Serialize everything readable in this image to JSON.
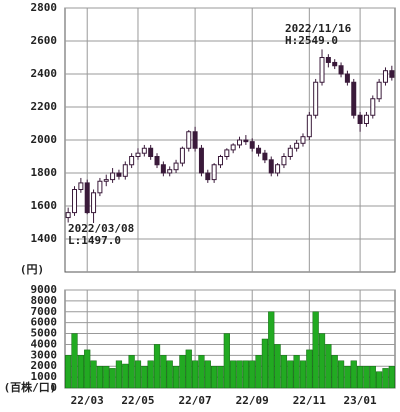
{
  "chart_data": [
    {
      "type": "candlestick",
      "y_label": "(円)",
      "color": "#3a1a3a",
      "ylim": [
        1200,
        2800
      ],
      "yticks": [
        1400,
        1600,
        1800,
        2000,
        2200,
        2400,
        2600,
        2800
      ],
      "annotations": [
        "2022/11/16",
        "H:2549.0",
        "2022/03/08",
        "L:1497.0"
      ],
      "open": [
        1530,
        1560,
        1700,
        1740,
        1560,
        1680,
        1750,
        1760,
        1800,
        1780,
        1850,
        1900,
        1920,
        1950,
        1900,
        1850,
        1800,
        1820,
        1860,
        1950,
        2050,
        1950,
        1800,
        1760,
        1850,
        1900,
        1940,
        1970,
        2000,
        1990,
        1950,
        1920,
        1880,
        1800,
        1850,
        1900,
        1950,
        1980,
        2020,
        2150,
        2350,
        2500,
        2470,
        2450,
        2400,
        2350,
        2150,
        2100,
        2150,
        2250,
        2350,
        2420
      ],
      "high": [
        1590,
        1720,
        1770,
        1760,
        1700,
        1770,
        1790,
        1830,
        1820,
        1870,
        1920,
        1950,
        1970,
        1970,
        1920,
        1870,
        1840,
        1880,
        1960,
        2060,
        2080,
        1970,
        1820,
        1860,
        1910,
        1950,
        1980,
        2020,
        2030,
        2010,
        1970,
        1940,
        1900,
        1860,
        1920,
        1970,
        2000,
        2040,
        2170,
        2370,
        2549,
        2520,
        2490,
        2470,
        2420,
        2370,
        2170,
        2170,
        2270,
        2370,
        2440,
        2450
      ],
      "low": [
        1500,
        1540,
        1680,
        1550,
        1497,
        1660,
        1720,
        1740,
        1760,
        1760,
        1830,
        1880,
        1900,
        1880,
        1830,
        1780,
        1780,
        1800,
        1840,
        1930,
        1930,
        1780,
        1740,
        1740,
        1830,
        1880,
        1920,
        1950,
        1970,
        1930,
        1900,
        1860,
        1780,
        1780,
        1830,
        1880,
        1930,
        1960,
        2000,
        2130,
        2330,
        2440,
        2430,
        2380,
        2330,
        2130,
        2050,
        2080,
        2130,
        2230,
        2330,
        2360
      ],
      "close": [
        1560,
        1700,
        1740,
        1560,
        1680,
        1750,
        1760,
        1800,
        1780,
        1850,
        1900,
        1920,
        1950,
        1900,
        1850,
        1800,
        1820,
        1860,
        1950,
        2050,
        1950,
        1800,
        1760,
        1850,
        1900,
        1940,
        1970,
        2000,
        1990,
        1950,
        1920,
        1880,
        1800,
        1850,
        1900,
        1950,
        1980,
        2020,
        2150,
        2350,
        2500,
        2470,
        2450,
        2400,
        2350,
        2150,
        2100,
        2150,
        2250,
        2350,
        2420,
        2380
      ]
    },
    {
      "type": "bar",
      "y_label": "(百株/口)",
      "color": "#22aa22",
      "ylim": [
        0,
        9000
      ],
      "yticks": [
        0,
        1000,
        2000,
        3000,
        4000,
        5000,
        6000,
        7000,
        8000,
        9000
      ],
      "xticks": [
        {
          "value": 3,
          "label": "22/03"
        },
        {
          "value": 11,
          "label": "22/05"
        },
        {
          "value": 20,
          "label": "22/07"
        },
        {
          "value": 29,
          "label": "22/09"
        },
        {
          "value": 38,
          "label": "22/11"
        },
        {
          "value": 46,
          "label": "23/01"
        }
      ],
      "values": [
        3000,
        5000,
        3000,
        3500,
        2500,
        2000,
        2000,
        1800,
        2500,
        2200,
        3000,
        2500,
        2000,
        2500,
        4000,
        3000,
        2500,
        2000,
        3000,
        3500,
        2500,
        3000,
        2500,
        2000,
        2000,
        5000,
        2500,
        2500,
        2500,
        2500,
        3000,
        4500,
        7000,
        4000,
        3000,
        2500,
        3000,
        2500,
        3500,
        7000,
        5000,
        4000,
        3000,
        2500,
        2000,
        2500,
        2000,
        2000,
        2000,
        1500,
        1800,
        2000
      ]
    }
  ]
}
